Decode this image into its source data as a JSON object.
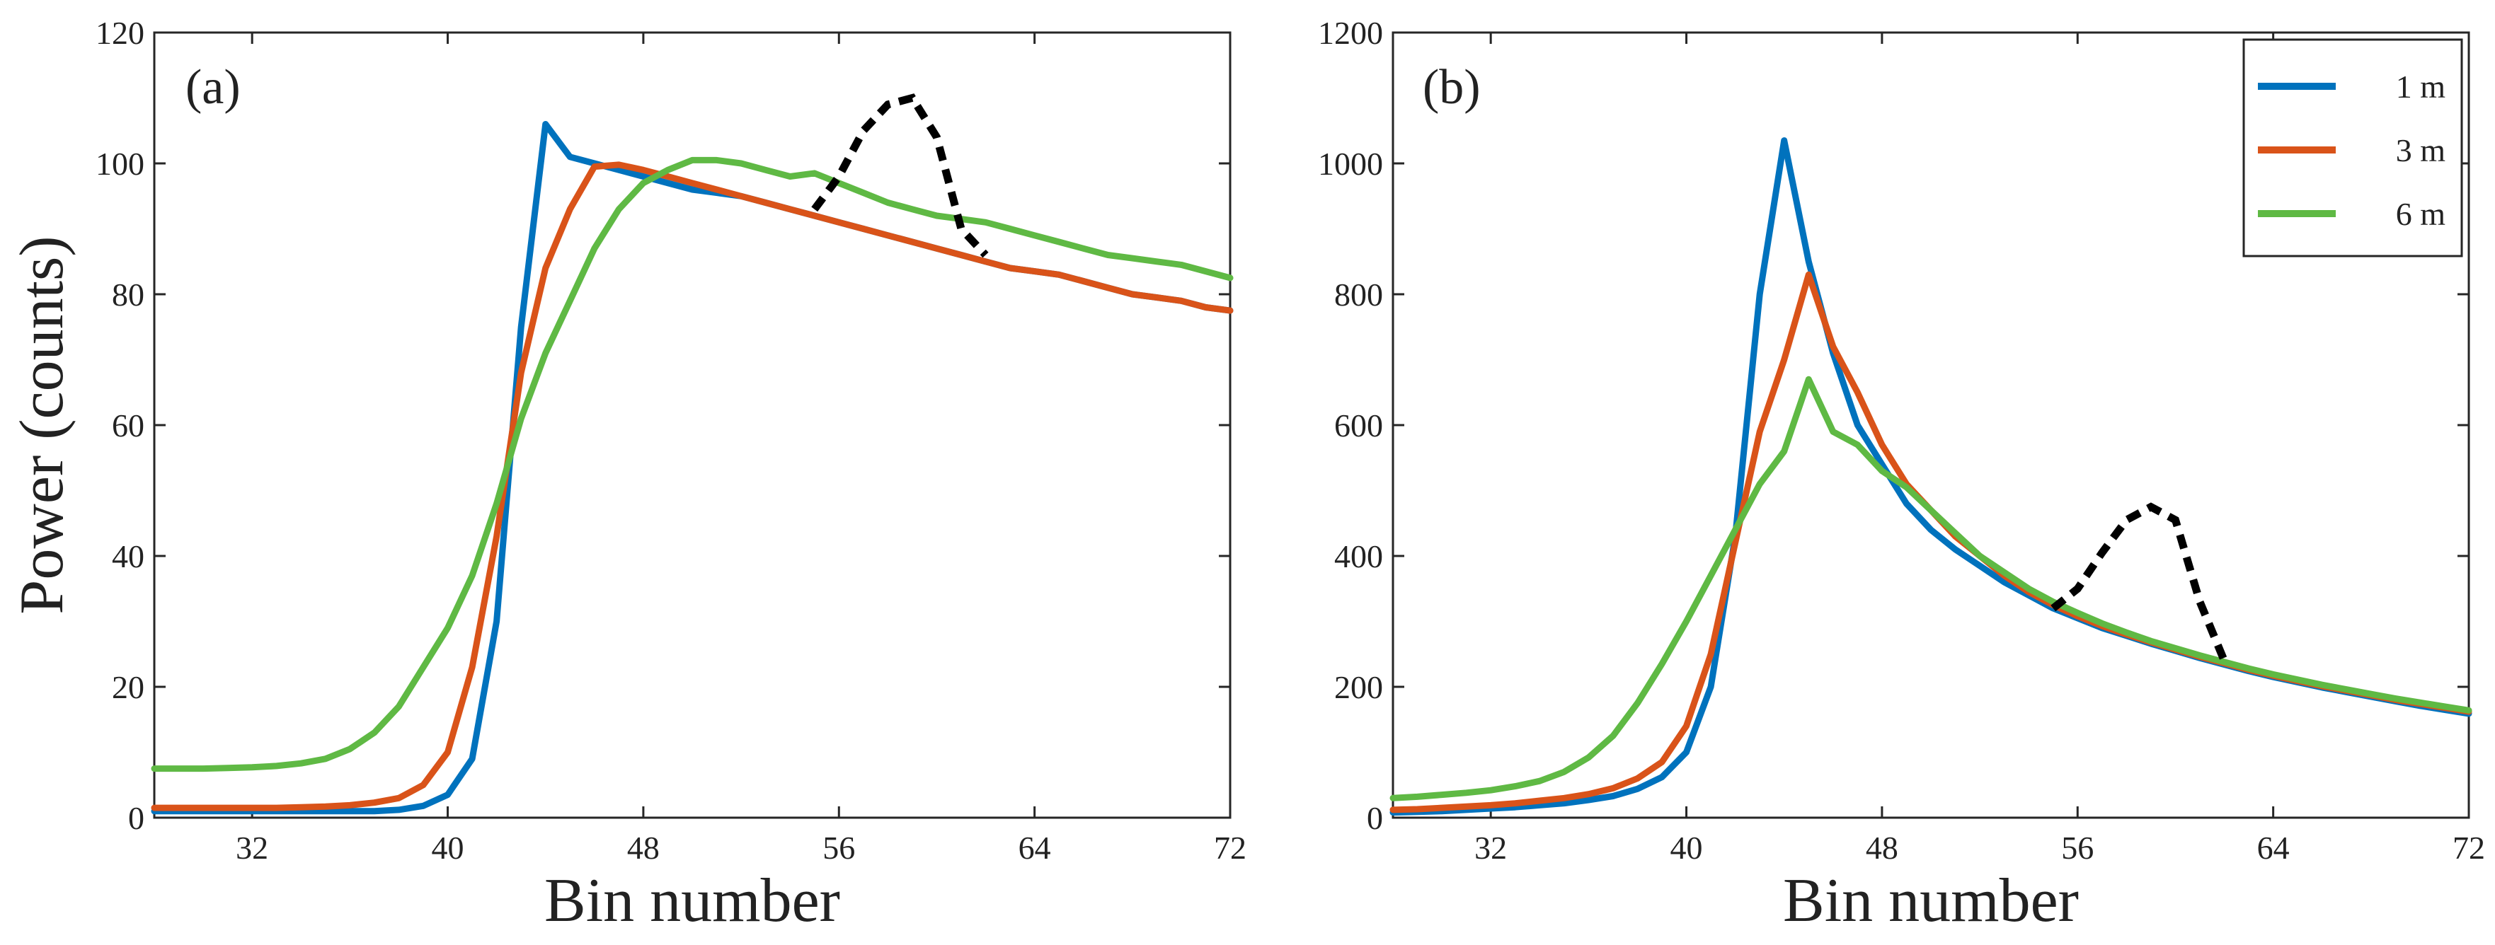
{
  "colors": {
    "s1": "#0072bd",
    "s3": "#d95319",
    "s6": "#5fb944",
    "ghost": "#000000"
  },
  "chart_data": [
    {
      "type": "line",
      "panel_label": "(a)",
      "xlabel": "Bin number",
      "ylabel": "Power (counts)",
      "xlim": [
        28,
        72
      ],
      "ylim": [
        0,
        120
      ],
      "xticks": [
        32,
        40,
        48,
        56,
        64,
        72
      ],
      "yticks": [
        0,
        20,
        40,
        60,
        80,
        100,
        120
      ],
      "x": [
        28,
        29,
        30,
        31,
        32,
        33,
        34,
        35,
        36,
        37,
        38,
        39,
        40,
        41,
        42,
        43,
        44,
        45,
        46,
        47,
        48,
        49,
        50,
        51,
        52,
        53,
        54,
        55,
        56,
        57,
        58,
        59,
        60,
        61,
        62,
        63,
        64,
        65,
        66,
        67,
        68,
        69,
        70,
        71,
        72
      ],
      "series": [
        {
          "name": "1 m",
          "color": "#0072bd",
          "values": [
            1,
            1,
            1,
            1,
            1,
            1,
            1,
            1,
            1,
            1,
            1.2,
            1.8,
            3.5,
            9,
            30,
            75,
            106,
            101,
            100,
            99,
            98,
            97,
            96,
            95.5,
            95,
            94,
            93,
            92,
            91,
            90,
            89,
            88,
            87,
            86,
            85,
            84,
            83.5,
            83,
            82,
            81,
            80,
            79.5,
            79,
            78,
            77.5
          ]
        },
        {
          "name": "3 m",
          "color": "#d95319",
          "values": [
            1.5,
            1.5,
            1.5,
            1.5,
            1.5,
            1.5,
            1.6,
            1.7,
            1.9,
            2.3,
            3,
            5,
            10,
            23,
            43,
            68,
            84,
            93,
            99.5,
            99.8,
            99,
            98,
            97,
            96,
            95,
            94,
            93,
            92,
            91,
            90,
            89,
            88,
            87,
            86,
            85,
            84,
            83.5,
            83,
            82,
            81,
            80,
            79.5,
            79,
            78,
            77.5
          ]
        },
        {
          "name": "6 m",
          "color": "#5fb944",
          "values": [
            7.5,
            7.5,
            7.5,
            7.6,
            7.7,
            7.9,
            8.3,
            9,
            10.5,
            13,
            17,
            23,
            29,
            37,
            48,
            61,
            71,
            79,
            87,
            93,
            97,
            99,
            100.5,
            100.5,
            100,
            99,
            98,
            98.5,
            97,
            95.5,
            94,
            93,
            92,
            91.5,
            91,
            90,
            89,
            88,
            87,
            86,
            85.5,
            85,
            84.5,
            83.5,
            82.5
          ]
        }
      ],
      "ghost_peak": {
        "x": [
          55,
          56,
          57,
          58,
          59,
          60,
          61,
          62
        ],
        "values": [
          93,
          98,
          105,
          109,
          110,
          104,
          90,
          86
        ]
      }
    },
    {
      "type": "line",
      "panel_label": "(b)",
      "xlabel": "Bin number",
      "ylabel": "",
      "xlim": [
        28,
        72
      ],
      "ylim": [
        0,
        1200
      ],
      "xticks": [
        32,
        40,
        48,
        56,
        64,
        72
      ],
      "yticks": [
        0,
        200,
        400,
        600,
        800,
        1000,
        1200
      ],
      "x": [
        28,
        29,
        30,
        31,
        32,
        33,
        34,
        35,
        36,
        37,
        38,
        39,
        40,
        41,
        42,
        43,
        44,
        45,
        46,
        47,
        48,
        49,
        50,
        51,
        52,
        53,
        54,
        55,
        56,
        57,
        58,
        59,
        60,
        61,
        62,
        63,
        64,
        65,
        66,
        67,
        68,
        69,
        70,
        71,
        72
      ],
      "series": [
        {
          "name": "1 m",
          "color": "#0072bd",
          "values": [
            8,
            9,
            10,
            12,
            14,
            16,
            19,
            22,
            27,
            33,
            44,
            62,
            100,
            200,
            430,
            800,
            1035,
            850,
            710,
            600,
            540,
            480,
            440,
            410,
            385,
            360,
            340,
            320,
            305,
            290,
            278,
            266,
            255,
            244,
            234,
            224,
            215,
            207,
            199,
            192,
            185,
            178,
            171,
            165,
            159
          ]
        },
        {
          "name": "3 m",
          "color": "#d95319",
          "values": [
            12,
            13,
            15,
            17,
            19,
            22,
            26,
            30,
            36,
            45,
            60,
            85,
            140,
            250,
            420,
            590,
            700,
            830,
            720,
            650,
            570,
            510,
            470,
            430,
            400,
            370,
            345,
            325,
            308,
            293,
            280,
            268,
            257,
            246,
            236,
            226,
            217,
            209,
            201,
            194,
            187,
            180,
            174,
            168,
            162
          ]
        },
        {
          "name": "6 m",
          "color": "#5fb944",
          "values": [
            30,
            32,
            35,
            38,
            42,
            48,
            56,
            70,
            92,
            125,
            175,
            235,
            300,
            370,
            440,
            510,
            560,
            670,
            590,
            570,
            530,
            505,
            470,
            435,
            400,
            375,
            350,
            330,
            313,
            297,
            283,
            270,
            259,
            248,
            238,
            228,
            219,
            211,
            203,
            196,
            189,
            182,
            176,
            170,
            164
          ]
        }
      ],
      "ghost_peak": {
        "x": [
          55,
          56,
          57,
          58,
          59,
          60,
          61,
          62
        ],
        "values": [
          320,
          350,
          405,
          455,
          475,
          455,
          330,
          240
        ]
      },
      "legend": {
        "position": "top-right",
        "entries": [
          "1 m",
          "3 m",
          "6 m"
        ]
      }
    }
  ]
}
